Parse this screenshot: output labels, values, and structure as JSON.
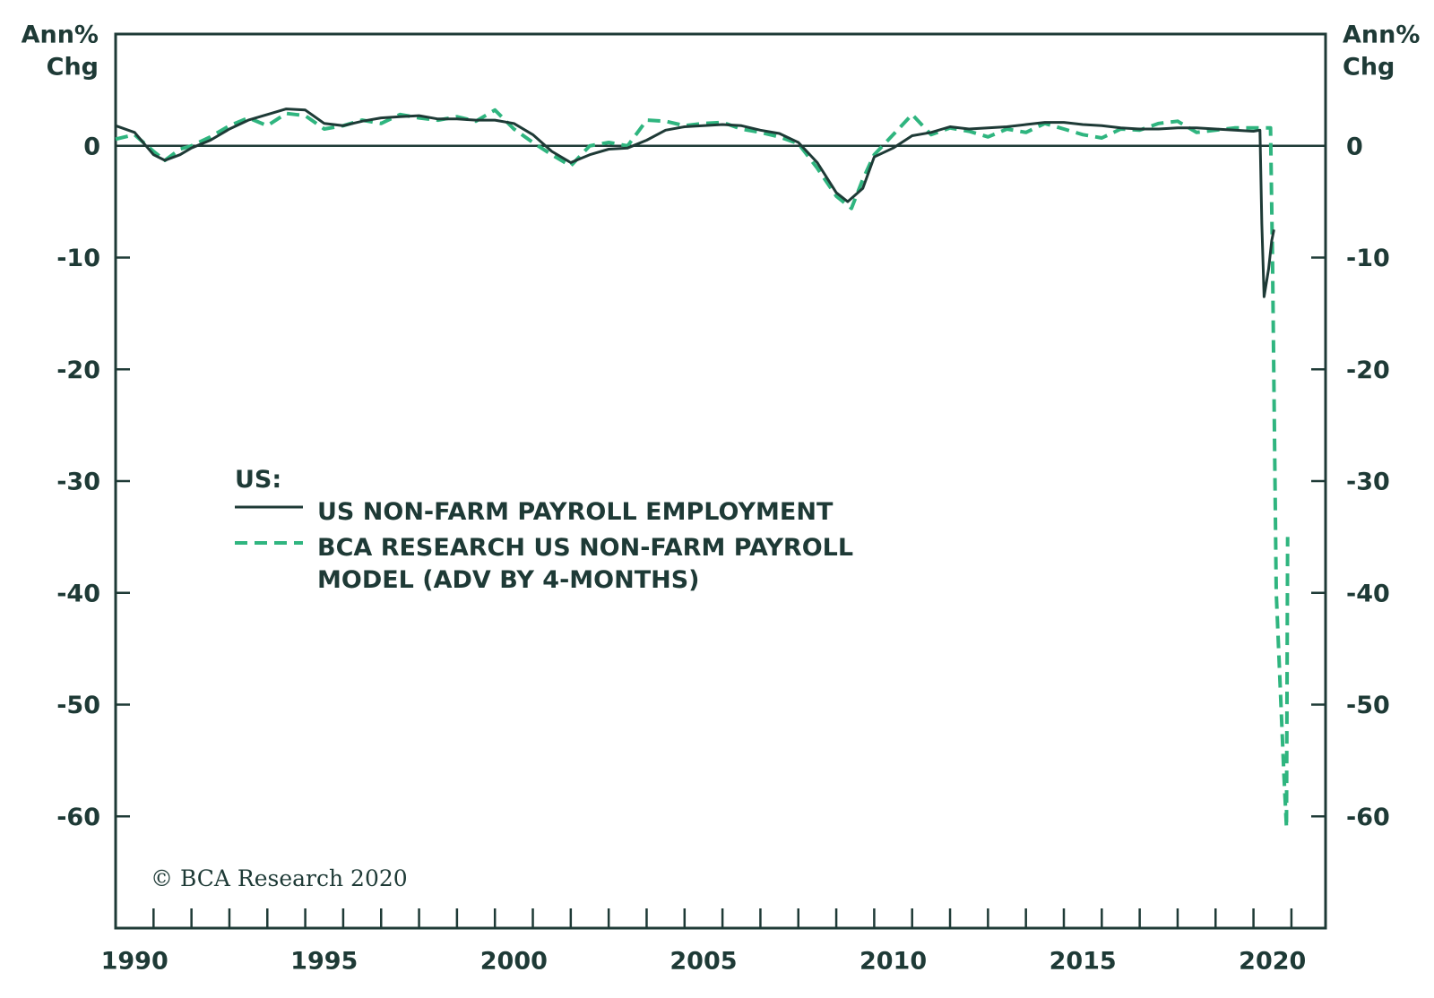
{
  "chart_data": {
    "type": "line",
    "y_label": [
      "Ann%",
      "Chg"
    ],
    "y2_label": [
      "Ann%",
      "Chg"
    ],
    "legend_title": "US:",
    "annotation": "© BCA Research 2020",
    "xlim": [
      1990,
      2021.9
    ],
    "xticks": [
      {
        "value": 1990.5,
        "label": "1990"
      },
      {
        "value": 1995.5,
        "label": "1995"
      },
      {
        "value": 2000.5,
        "label": "2000"
      },
      {
        "value": 2005.5,
        "label": "2005"
      },
      {
        "value": 2010.5,
        "label": "2010"
      },
      {
        "value": 2015.5,
        "label": "2015"
      },
      {
        "value": 2020.5,
        "label": "2020"
      }
    ],
    "xminorticks": [
      1991,
      1992,
      1993,
      1994,
      1995,
      1996,
      1997,
      1998,
      1999,
      2000,
      2001,
      2002,
      2003,
      2004,
      2005,
      2006,
      2007,
      2008,
      2009,
      2010,
      2011,
      2012,
      2013,
      2014,
      2015,
      2016,
      2017,
      2018,
      2019,
      2020,
      2021
    ],
    "ylim": [
      -70,
      10
    ],
    "yticks": [
      0,
      -10,
      -20,
      -30,
      -40,
      -50,
      -60
    ],
    "reference_line": 0,
    "series": [
      {
        "name": "US NON-FARM PAYROLL EMPLOYMENT",
        "color": "#1e3a36",
        "dashed": false,
        "x": [
          1990,
          1990.5,
          1991,
          1991.3,
          1991.7,
          1992,
          1992.5,
          1993,
          1993.5,
          1994,
          1994.5,
          1995,
          1995.5,
          1996,
          1996.5,
          1997,
          1997.5,
          1998,
          1998.5,
          1999,
          1999.5,
          2000,
          2000.5,
          2001,
          2001.5,
          2002,
          2002.5,
          2003,
          2003.5,
          2004,
          2004.5,
          2005,
          2005.5,
          2006,
          2006.5,
          2007,
          2007.5,
          2008,
          2008.5,
          2009,
          2009.3,
          2009.7,
          2010,
          2010.5,
          2011,
          2011.5,
          2012,
          2012.5,
          2013,
          2013.5,
          2014,
          2014.5,
          2015,
          2015.5,
          2016,
          2016.5,
          2017,
          2017.5,
          2018,
          2018.5,
          2019,
          2019.5,
          2020,
          2020.17,
          2020.22,
          2020.28,
          2020.4,
          2020.48,
          2020.54
        ],
        "values": [
          1.8,
          1.2,
          -0.8,
          -1.3,
          -0.8,
          -0.2,
          0.5,
          1.5,
          2.3,
          2.8,
          3.3,
          3.2,
          2.0,
          1.8,
          2.2,
          2.5,
          2.6,
          2.7,
          2.4,
          2.4,
          2.3,
          2.3,
          2.0,
          1.0,
          -0.5,
          -1.5,
          -0.8,
          -0.3,
          -0.2,
          0.5,
          1.4,
          1.7,
          1.8,
          1.9,
          1.8,
          1.4,
          1.1,
          0.3,
          -1.5,
          -4.2,
          -5.0,
          -3.8,
          -1.0,
          -0.2,
          0.9,
          1.2,
          1.7,
          1.5,
          1.6,
          1.7,
          1.9,
          2.1,
          2.1,
          1.9,
          1.8,
          1.6,
          1.5,
          1.5,
          1.6,
          1.6,
          1.5,
          1.4,
          1.3,
          1.4,
          -7,
          -13.5,
          -11,
          -8.5,
          -7.5
        ]
      },
      {
        "name": "BCA RESEARCH US NON-FARM PAYROLL MODEL (ADV BY 4-MONTHS)",
        "color": "#2fb57f",
        "dashed": true,
        "x": [
          1990,
          1990.5,
          1991,
          1991.3,
          1991.7,
          1992,
          1992.5,
          1993,
          1993.5,
          1994,
          1994.5,
          1995,
          1995.5,
          1996,
          1996.5,
          1997,
          1997.5,
          1998,
          1998.5,
          1999,
          1999.5,
          2000,
          2000.5,
          2001,
          2001.5,
          2002,
          2002.5,
          2003,
          2003.5,
          2004,
          2004.5,
          2005,
          2005.5,
          2006,
          2006.5,
          2007,
          2007.5,
          2008,
          2008.5,
          2009,
          2009.4,
          2009.7,
          2010,
          2010.5,
          2011,
          2011.5,
          2012,
          2012.5,
          2013,
          2013.5,
          2014,
          2014.5,
          2015,
          2015.5,
          2016,
          2016.5,
          2017,
          2017.5,
          2018,
          2018.5,
          2019,
          2019.5,
          2020,
          2020.45,
          2020.5,
          2020.6,
          2020.8,
          2020.87,
          2020.9
        ],
        "values": [
          0.6,
          1.0,
          -0.5,
          -1.3,
          -0.3,
          0,
          0.8,
          1.8,
          2.5,
          1.8,
          2.9,
          2.7,
          1.5,
          1.8,
          2.3,
          2.0,
          2.8,
          2.5,
          2.3,
          2.6,
          2.2,
          3.2,
          1.5,
          0.3,
          -0.8,
          -1.8,
          0.0,
          0.3,
          0.0,
          2.3,
          2.2,
          1.8,
          2.0,
          2.1,
          1.5,
          1.2,
          0.8,
          0.2,
          -2.0,
          -4.5,
          -5.6,
          -3.0,
          -0.8,
          1.0,
          2.8,
          1.0,
          1.6,
          1.3,
          0.8,
          1.5,
          1.2,
          2.0,
          1.5,
          1.0,
          0.7,
          1.5,
          1.4,
          2.0,
          2.2,
          1.2,
          1.4,
          1.6,
          1.6,
          1.6,
          -10,
          -40,
          -56,
          -61,
          -35
        ]
      }
    ]
  }
}
